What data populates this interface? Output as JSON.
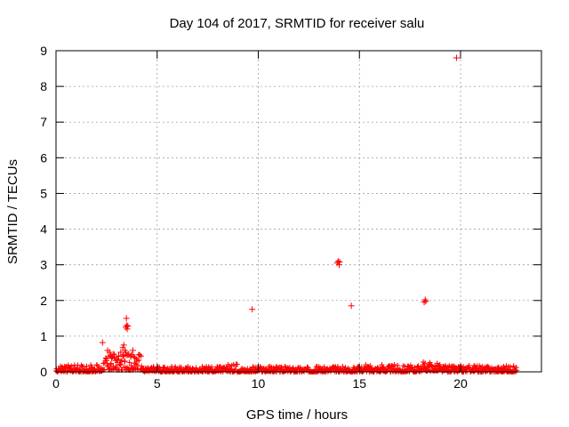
{
  "chart_data": {
    "type": "scatter",
    "title": "Day 104 of 2017, SRMTID for receiver salu",
    "xlabel": "GPS time / hours",
    "ylabel": "SRMTID / TECUs",
    "xlim": [
      0,
      24
    ],
    "ylim": [
      0,
      9
    ],
    "xticks": [
      0,
      5,
      10,
      15,
      20
    ],
    "yticks": [
      0,
      1,
      2,
      3,
      4,
      5,
      6,
      7,
      8,
      9
    ],
    "grid": true,
    "marker": "+",
    "color": "#ff0000",
    "series": [
      {
        "name": "SRMTID",
        "points": [
          [
            2.3,
            0.82
          ],
          [
            2.55,
            0.6
          ],
          [
            2.65,
            0.55
          ],
          [
            2.7,
            0.45
          ],
          [
            2.75,
            0.4
          ],
          [
            2.85,
            0.5
          ],
          [
            3.0,
            0.35
          ],
          [
            3.1,
            0.45
          ],
          [
            3.2,
            0.55
          ],
          [
            3.3,
            0.68
          ],
          [
            3.35,
            0.75
          ],
          [
            3.4,
            0.6
          ],
          [
            3.45,
            0.55
          ],
          [
            3.45,
            1.25
          ],
          [
            3.48,
            1.5
          ],
          [
            3.5,
            1.3
          ],
          [
            3.52,
            1.2
          ],
          [
            3.55,
            1.28
          ],
          [
            3.6,
            0.5
          ],
          [
            3.7,
            0.45
          ],
          [
            3.8,
            0.6
          ],
          [
            3.9,
            0.4
          ],
          [
            4.0,
            0.3
          ],
          [
            9.7,
            1.75
          ],
          [
            13.9,
            3.05
          ],
          [
            13.95,
            3.1
          ],
          [
            14.0,
            3.0
          ],
          [
            14.02,
            3.08
          ],
          [
            14.6,
            1.85
          ],
          [
            18.2,
            1.95
          ],
          [
            18.25,
            2.02
          ],
          [
            18.28,
            1.98
          ],
          [
            19.8,
            8.8
          ]
        ],
        "bands": [
          {
            "x": [
              0.0,
              2.3
            ],
            "y": [
              0.0,
              0.2
            ]
          },
          {
            "x": [
              2.3,
              4.3
            ],
            "y": [
              0.05,
              0.5
            ]
          },
          {
            "x": [
              4.3,
              8.5
            ],
            "y": [
              0.0,
              0.15
            ]
          },
          {
            "x": [
              8.5,
              9.0
            ],
            "y": [
              0.0,
              0.22
            ]
          },
          {
            "x": [
              9.0,
              15.0
            ],
            "y": [
              0.0,
              0.15
            ]
          },
          {
            "x": [
              15.0,
              18.0
            ],
            "y": [
              0.0,
              0.2
            ]
          },
          {
            "x": [
              18.0,
              19.0
            ],
            "y": [
              0.02,
              0.28
            ]
          },
          {
            "x": [
              19.0,
              22.8
            ],
            "y": [
              0.0,
              0.18
            ]
          }
        ]
      }
    ]
  }
}
